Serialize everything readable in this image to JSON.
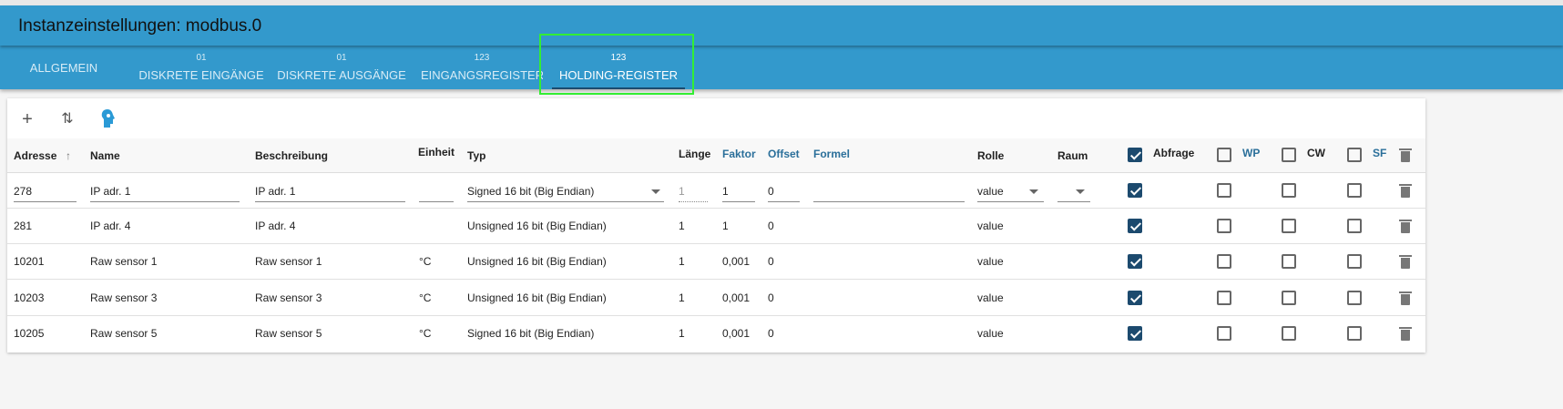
{
  "header": {
    "title": "Instanzeinstellungen: modbus.0"
  },
  "tabs": [
    {
      "num": "",
      "label": "ALLGEMEIN"
    },
    {
      "num": "01",
      "label": "DISKRETE EINGÄNGE"
    },
    {
      "num": "01",
      "label": "DISKRETE AUSGÄNGE"
    },
    {
      "num": "123",
      "label": "EINGANGSREGISTER"
    },
    {
      "num": "123",
      "label": "HOLDING-REGISTER",
      "active": true
    }
  ],
  "toolbar": {
    "add": "+",
    "sort": "⇅"
  },
  "columns": {
    "adresse": "Adresse",
    "sort_arrow": "↑",
    "name": "Name",
    "beschreibung": "Beschreibung",
    "einheit": "Einheit",
    "typ": "Typ",
    "laenge": "Länge",
    "faktor": "Faktor",
    "offset": "Offset",
    "formel": "Formel",
    "rolle": "Rolle",
    "raum": "Raum",
    "abfrage": "Abfrage",
    "wp": "WP",
    "cw": "CW",
    "sf": "SF"
  },
  "edit_row": {
    "adresse": "278",
    "name": "IP adr. 1",
    "beschreibung": "IP adr. 1",
    "einheit": "",
    "typ": "Signed 16 bit (Big Endian)",
    "laenge": "1",
    "faktor": "1",
    "offset": "0",
    "formel": "",
    "rolle": "value",
    "raum": ""
  },
  "rows": [
    {
      "adresse": "281",
      "name": "IP adr. 4",
      "beschreibung": "IP adr. 4",
      "einheit": "",
      "typ": "Unsigned 16 bit (Big Endian)",
      "laenge": "1",
      "faktor": "1",
      "offset": "0",
      "rolle": "value"
    },
    {
      "adresse": "10201",
      "name": "Raw sensor 1",
      "beschreibung": "Raw sensor 1",
      "einheit": "°C",
      "typ": "Unsigned 16 bit (Big Endian)",
      "laenge": "1",
      "faktor": "0,001",
      "offset": "0",
      "rolle": "value"
    },
    {
      "adresse": "10203",
      "name": "Raw sensor 3",
      "beschreibung": "Raw sensor 3",
      "einheit": "°C",
      "typ": "Unsigned 16 bit (Big Endian)",
      "laenge": "1",
      "faktor": "0,001",
      "offset": "0",
      "rolle": "value"
    },
    {
      "adresse": "10205",
      "name": "Raw sensor 5",
      "beschreibung": "Raw sensor 5",
      "einheit": "°C",
      "typ": "Signed 16 bit (Big Endian)",
      "laenge": "1",
      "faktor": "0,001",
      "offset": "0",
      "rolle": "value"
    }
  ]
}
